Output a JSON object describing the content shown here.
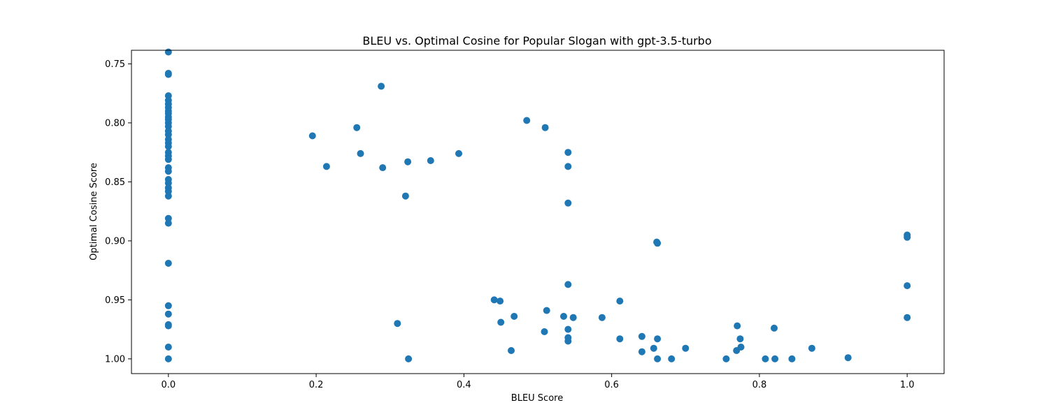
{
  "chart_data": {
    "type": "scatter",
    "title": "BLEU vs. Optimal Cosine for Popular Slogan with gpt-3.5-turbo",
    "xlabel": "BLEU Score",
    "ylabel": "Optimal Cosine Score",
    "xlim": [
      -0.05,
      1.05
    ],
    "ylim": [
      1.0125,
      0.7385
    ],
    "y_inverted": true,
    "grid": false,
    "legend": "none",
    "x_ticks": [
      {
        "value": 0.0,
        "label": "0.0"
      },
      {
        "value": 0.2,
        "label": "0.2"
      },
      {
        "value": 0.4,
        "label": "0.4"
      },
      {
        "value": 0.6,
        "label": "0.6"
      },
      {
        "value": 0.8,
        "label": "0.8"
      },
      {
        "value": 1.0,
        "label": "1.0"
      }
    ],
    "y_ticks": [
      {
        "value": 0.75,
        "label": "0.75"
      },
      {
        "value": 0.8,
        "label": "0.80"
      },
      {
        "value": 0.85,
        "label": "0.85"
      },
      {
        "value": 0.9,
        "label": "0.90"
      },
      {
        "value": 0.95,
        "label": "0.95"
      },
      {
        "value": 1.0,
        "label": "1.00"
      }
    ],
    "marker_color": "#1f77b4",
    "points": [
      {
        "x": 0.0,
        "y": 0.74
      },
      {
        "x": 0.0,
        "y": 0.758
      },
      {
        "x": 0.0,
        "y": 0.759
      },
      {
        "x": 0.0,
        "y": 0.777
      },
      {
        "x": 0.0,
        "y": 0.781
      },
      {
        "x": 0.0,
        "y": 0.784
      },
      {
        "x": 0.0,
        "y": 0.787
      },
      {
        "x": 0.0,
        "y": 0.79
      },
      {
        "x": 0.0,
        "y": 0.792
      },
      {
        "x": 0.0,
        "y": 0.795
      },
      {
        "x": 0.0,
        "y": 0.797
      },
      {
        "x": 0.0,
        "y": 0.8
      },
      {
        "x": 0.0,
        "y": 0.803
      },
      {
        "x": 0.0,
        "y": 0.807
      },
      {
        "x": 0.0,
        "y": 0.81
      },
      {
        "x": 0.0,
        "y": 0.814
      },
      {
        "x": 0.0,
        "y": 0.817
      },
      {
        "x": 0.0,
        "y": 0.82
      },
      {
        "x": 0.0,
        "y": 0.825
      },
      {
        "x": 0.0,
        "y": 0.828
      },
      {
        "x": 0.0,
        "y": 0.831
      },
      {
        "x": 0.0,
        "y": 0.838
      },
      {
        "x": 0.0,
        "y": 0.841
      },
      {
        "x": 0.0,
        "y": 0.848
      },
      {
        "x": 0.0,
        "y": 0.851
      },
      {
        "x": 0.0,
        "y": 0.855
      },
      {
        "x": 0.0,
        "y": 0.858
      },
      {
        "x": 0.0,
        "y": 0.862
      },
      {
        "x": 0.0,
        "y": 0.881
      },
      {
        "x": 0.0,
        "y": 0.885
      },
      {
        "x": 0.0,
        "y": 0.919
      },
      {
        "x": 0.0,
        "y": 0.955
      },
      {
        "x": 0.0,
        "y": 0.962
      },
      {
        "x": 0.0,
        "y": 0.971
      },
      {
        "x": 0.0,
        "y": 0.972
      },
      {
        "x": 0.0,
        "y": 0.99
      },
      {
        "x": 0.0,
        "y": 1.0
      },
      {
        "x": 0.195,
        "y": 0.811
      },
      {
        "x": 0.214,
        "y": 0.837
      },
      {
        "x": 0.255,
        "y": 0.804
      },
      {
        "x": 0.26,
        "y": 0.826
      },
      {
        "x": 0.288,
        "y": 0.769
      },
      {
        "x": 0.29,
        "y": 0.838
      },
      {
        "x": 0.31,
        "y": 0.97
      },
      {
        "x": 0.321,
        "y": 0.862
      },
      {
        "x": 0.324,
        "y": 0.833
      },
      {
        "x": 0.325,
        "y": 1.0
      },
      {
        "x": 0.355,
        "y": 0.832
      },
      {
        "x": 0.393,
        "y": 0.826
      },
      {
        "x": 0.441,
        "y": 0.95
      },
      {
        "x": 0.449,
        "y": 0.951
      },
      {
        "x": 0.45,
        "y": 0.969
      },
      {
        "x": 0.464,
        "y": 0.993
      },
      {
        "x": 0.468,
        "y": 0.964
      },
      {
        "x": 0.485,
        "y": 0.798
      },
      {
        "x": 0.509,
        "y": 0.977
      },
      {
        "x": 0.51,
        "y": 0.804
      },
      {
        "x": 0.512,
        "y": 0.959
      },
      {
        "x": 0.535,
        "y": 0.964
      },
      {
        "x": 0.541,
        "y": 0.825
      },
      {
        "x": 0.541,
        "y": 0.837
      },
      {
        "x": 0.541,
        "y": 0.868
      },
      {
        "x": 0.541,
        "y": 0.937
      },
      {
        "x": 0.541,
        "y": 0.975
      },
      {
        "x": 0.541,
        "y": 0.982
      },
      {
        "x": 0.541,
        "y": 0.985
      },
      {
        "x": 0.548,
        "y": 0.965
      },
      {
        "x": 0.587,
        "y": 0.965
      },
      {
        "x": 0.611,
        "y": 0.951
      },
      {
        "x": 0.611,
        "y": 0.983
      },
      {
        "x": 0.641,
        "y": 0.981
      },
      {
        "x": 0.641,
        "y": 0.994
      },
      {
        "x": 0.657,
        "y": 0.991
      },
      {
        "x": 0.661,
        "y": 0.901
      },
      {
        "x": 0.662,
        "y": 0.902
      },
      {
        "x": 0.662,
        "y": 0.983
      },
      {
        "x": 0.662,
        "y": 1.0
      },
      {
        "x": 0.681,
        "y": 1.0
      },
      {
        "x": 0.7,
        "y": 0.991
      },
      {
        "x": 0.755,
        "y": 1.0
      },
      {
        "x": 0.769,
        "y": 0.993
      },
      {
        "x": 0.77,
        "y": 0.972
      },
      {
        "x": 0.774,
        "y": 0.983
      },
      {
        "x": 0.775,
        "y": 0.99
      },
      {
        "x": 0.808,
        "y": 1.0
      },
      {
        "x": 0.82,
        "y": 0.974
      },
      {
        "x": 0.821,
        "y": 1.0
      },
      {
        "x": 0.844,
        "y": 1.0
      },
      {
        "x": 0.871,
        "y": 0.991
      },
      {
        "x": 0.92,
        "y": 0.999
      },
      {
        "x": 1.0,
        "y": 0.895
      },
      {
        "x": 1.0,
        "y": 0.897
      },
      {
        "x": 1.0,
        "y": 0.938
      },
      {
        "x": 1.0,
        "y": 0.965
      }
    ]
  }
}
